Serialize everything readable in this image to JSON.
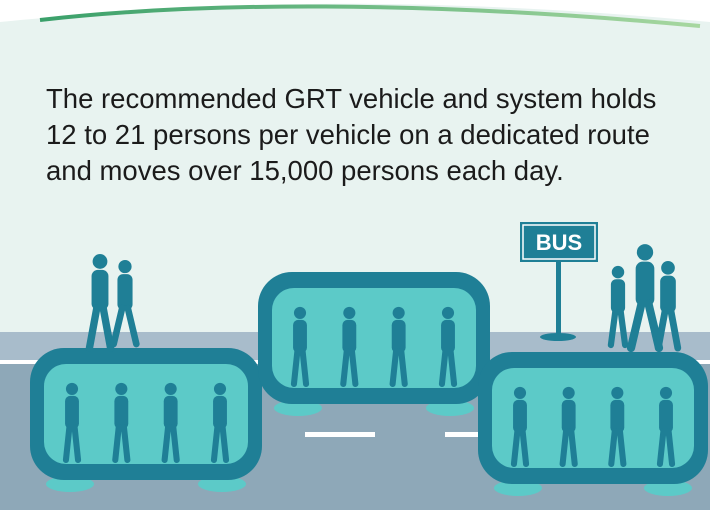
{
  "text": {
    "lines": [
      "The recommended GRT vehicle and system holds",
      "12 to 21 persons per vehicle on a dedicated route",
      "and moves over 15,000 persons each day."
    ]
  },
  "sign": "BUS"
}
